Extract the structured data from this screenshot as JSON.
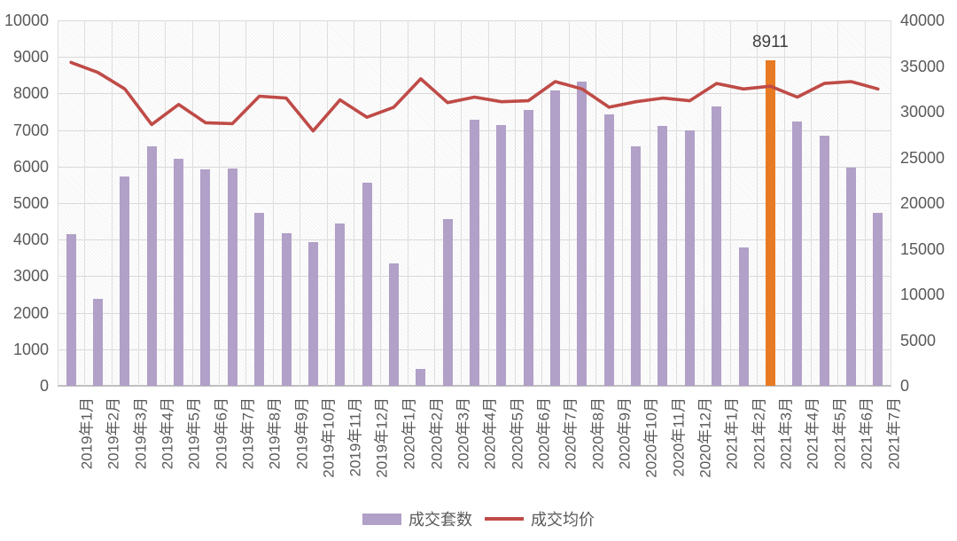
{
  "chart_data": {
    "type": "combo-bar-line",
    "title": "",
    "categories": [
      "2019年1月",
      "2019年2月",
      "2019年3月",
      "2019年4月",
      "2019年5月",
      "2019年6月",
      "2019年7月",
      "2019年8月",
      "2019年9月",
      "2019年10月",
      "2019年11月",
      "2019年12月",
      "2020年1月",
      "2020年2月",
      "2020年3月",
      "2020年4月",
      "2020年5月",
      "2020年6月",
      "2020年7月",
      "2020年8月",
      "2020年9月",
      "2020年10月",
      "2020年11月",
      "2020年12月",
      "2021年1月",
      "2021年2月",
      "2021年3月",
      "2021年4月",
      "2021年5月",
      "2021年6月",
      "2021年7月"
    ],
    "series": [
      {
        "name": "成交套数",
        "type": "bar",
        "axis": "left",
        "color": "#b1a0c7",
        "values": [
          4150,
          2390,
          5720,
          6550,
          6220,
          5920,
          5950,
          4740,
          4170,
          3930,
          4450,
          5570,
          3340,
          450,
          4560,
          7290,
          7130,
          7550,
          8090,
          8320,
          7430,
          6560,
          7110,
          6980,
          7640,
          3780,
          8911,
          7240,
          6850,
          5980,
          4740
        ],
        "highlight_index": 26,
        "highlight_color": "#e87a24"
      },
      {
        "name": "成交均价",
        "type": "line",
        "axis": "right",
        "color": "#bf4b47",
        "values": [
          35400,
          34300,
          32500,
          28600,
          30800,
          28800,
          28700,
          31700,
          31500,
          27900,
          31300,
          29400,
          30500,
          33600,
          31000,
          31600,
          31100,
          31200,
          33300,
          32500,
          30500,
          31100,
          31500,
          31200,
          33100,
          32500,
          32800,
          31600,
          33100,
          33300,
          32500
        ]
      }
    ],
    "left_axis": {
      "min": 0,
      "max": 10000,
      "step": 1000,
      "ticks": [
        "10000",
        "9000",
        "8000",
        "7000",
        "6000",
        "5000",
        "4000",
        "3000",
        "2000",
        "1000",
        "0"
      ]
    },
    "right_axis": {
      "min": 0,
      "max": 40000,
      "step": 5000,
      "ticks": [
        "40000",
        "35000",
        "30000",
        "25000",
        "20000",
        "15000",
        "10000",
        "5000",
        "0"
      ]
    },
    "annotation": {
      "text": "8911",
      "category": "2021年3月"
    },
    "grid": {
      "horizontal": true,
      "vertical": true,
      "gridline_color": "#d9d9d9",
      "axis_color": "#bfbfbf"
    },
    "legend_position": "bottom"
  },
  "legend": {
    "items": [
      {
        "label": "成交套数",
        "swatch": "bar",
        "color": "#b1a0c7"
      },
      {
        "label": "成交均价",
        "swatch": "line",
        "color": "#bf4b47"
      }
    ]
  },
  "colors": {
    "tick_text": "#595959",
    "annotation_text": "#404040",
    "plot_bg": "#fdfdfd"
  }
}
